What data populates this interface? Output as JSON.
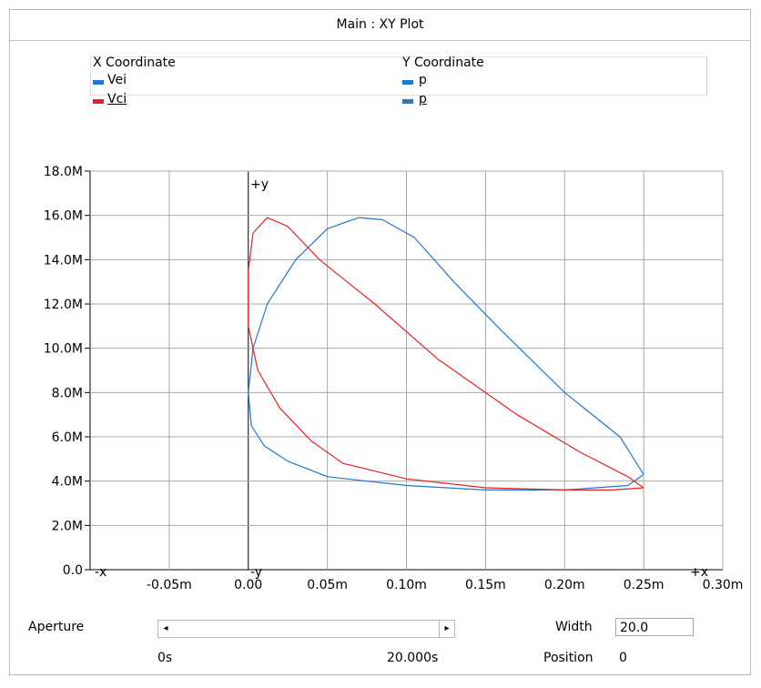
{
  "window": {
    "title": "Main : XY Plot"
  },
  "legend": {
    "x_header": "X Coordinate",
    "y_header": "Y Coordinate",
    "entries": [
      {
        "x": "Vei",
        "y": "p",
        "color": "#1f77d0"
      },
      {
        "x": "Vci",
        "y": "p",
        "color": "#e82020"
      }
    ]
  },
  "axis_labels": {
    "neg_x": "-x",
    "pos_x": "+x",
    "neg_y": "-y",
    "pos_y": "+y"
  },
  "chart_data": {
    "type": "line",
    "title": "",
    "xlabel": "",
    "ylabel": "",
    "xlim": [
      -0.1,
      0.3
    ],
    "ylim": [
      0,
      18000000
    ],
    "grid": true,
    "x_ticks": [
      "-0.05m",
      "0.00",
      "0.05m",
      "0.10m",
      "0.15m",
      "0.20m",
      "0.25m",
      "0.30m"
    ],
    "x_tick_values": [
      -0.05,
      0,
      0.05,
      0.1,
      0.15,
      0.2,
      0.25,
      0.3
    ],
    "y_ticks": [
      "0.0",
      "2.0M",
      "4.0M",
      "6.0M",
      "8.0M",
      "10.0M",
      "12.0M",
      "14.0M",
      "16.0M",
      "18.0M"
    ],
    "y_tick_values": [
      0,
      2000000,
      4000000,
      6000000,
      8000000,
      10000000,
      12000000,
      14000000,
      16000000,
      18000000
    ],
    "series": [
      {
        "name": "Vei",
        "color": "#1f77d0",
        "points": [
          [
            0.25,
            4300000.0
          ],
          [
            0.235,
            6000000.0
          ],
          [
            0.2,
            8000000.0
          ],
          [
            0.16,
            10800000.0
          ],
          [
            0.13,
            13000000.0
          ],
          [
            0.105,
            15000000.0
          ],
          [
            0.085,
            15800000.0
          ],
          [
            0.07,
            15900000.0
          ],
          [
            0.05,
            15400000.0
          ],
          [
            0.03,
            14000000.0
          ],
          [
            0.012,
            12000000.0
          ],
          [
            0.003,
            10000000.0
          ],
          [
            0.0,
            8000000.0
          ],
          [
            0.002,
            6500000.0
          ],
          [
            0.01,
            5600000.0
          ],
          [
            0.025,
            4900000.0
          ],
          [
            0.05,
            4200000.0
          ],
          [
            0.1,
            3800000.0
          ],
          [
            0.15,
            3600000.0
          ],
          [
            0.2,
            3600000.0
          ],
          [
            0.24,
            3800000.0
          ],
          [
            0.25,
            4300000.0
          ]
        ]
      },
      {
        "name": "Vci",
        "color": "#e82020",
        "points": [
          [
            0.25,
            3700000.0
          ],
          [
            0.23,
            3600000.0
          ],
          [
            0.2,
            3600000.0
          ],
          [
            0.15,
            3700000.0
          ],
          [
            0.1,
            4100000.0
          ],
          [
            0.06,
            4800000.0
          ],
          [
            0.04,
            5800000.0
          ],
          [
            0.02,
            7300000.0
          ],
          [
            0.006,
            9000000.0
          ],
          [
            0.0,
            11000000.0
          ],
          [
            0.0,
            13500000.0
          ],
          [
            0.003,
            15200000.0
          ],
          [
            0.012,
            15900000.0
          ],
          [
            0.025,
            15500000.0
          ],
          [
            0.045,
            14000000.0
          ],
          [
            0.08,
            12000000.0
          ],
          [
            0.12,
            9500000.0
          ],
          [
            0.17,
            7000000.0
          ],
          [
            0.21,
            5300000.0
          ],
          [
            0.24,
            4200000.0
          ],
          [
            0.25,
            3700000.0
          ]
        ]
      }
    ]
  },
  "bottom": {
    "aperture_label": "Aperture",
    "scroll_left_icon": "◂",
    "scroll_right_icon": "▸",
    "width_label": "Width",
    "width_value": "20.0",
    "start_time": "0s",
    "end_time": "20.000s",
    "position_label": "Position",
    "position_value": "0"
  }
}
